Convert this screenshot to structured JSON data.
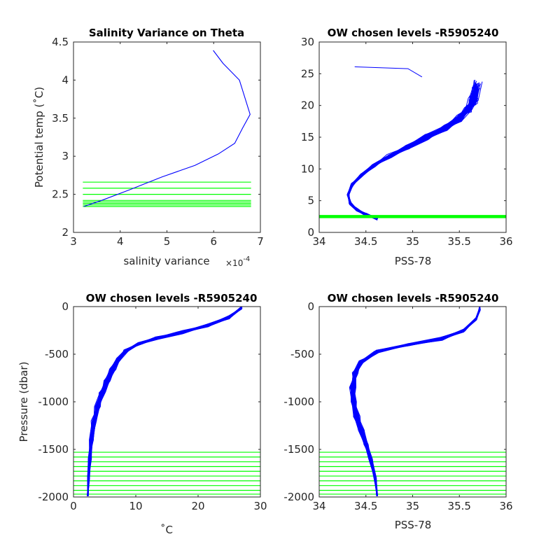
{
  "chart_data": [
    {
      "type": "line",
      "title": "Salinity Variance on Theta",
      "xlabel": "salinity variance",
      "x_exponent_label": "×10",
      "x_exponent_power": "-4",
      "ylabel": "Potential temp (˚C)",
      "xlim": [
        3,
        7
      ],
      "ylim": [
        2,
        4.5
      ],
      "xticks": [
        "3",
        "4",
        "5",
        "6",
        "7"
      ],
      "yticks": [
        "2",
        "2.5",
        "3",
        "3.5",
        "4",
        "4.5"
      ],
      "series": [
        {
          "color": "#0000ff",
          "x": [
            3.22,
            3.6,
            4.2,
            4.9,
            5.6,
            6.1,
            6.45,
            6.62,
            6.78,
            6.55,
            6.2,
            5.99
          ],
          "y": [
            2.34,
            2.42,
            2.56,
            2.73,
            2.88,
            3.03,
            3.17,
            3.37,
            3.55,
            4.0,
            4.22,
            4.39
          ]
        }
      ],
      "hlines": {
        "color": "#00ff00",
        "y": [
          2.34,
          2.36,
          2.38,
          2.4,
          2.42,
          2.5,
          2.58,
          2.66
        ],
        "x_start": 3.2,
        "x_end": 6.8
      }
    },
    {
      "type": "line",
      "title": "OW chosen levels -R5905240",
      "xlabel": "PSS-78",
      "ylabel": "",
      "xlim": [
        34,
        36
      ],
      "ylim": [
        0,
        30
      ],
      "xticks": [
        "34",
        "34.5",
        "35",
        "35.5",
        "36"
      ],
      "yticks": [
        "0",
        "5",
        "10",
        "15",
        "20",
        "25",
        "30"
      ],
      "profile": {
        "color": "#0000ff",
        "x": [
          34.62,
          34.5,
          34.4,
          34.33,
          34.31,
          34.35,
          34.45,
          34.58,
          34.75,
          34.95,
          35.15,
          35.35,
          35.5,
          35.6,
          35.65,
          35.68
        ],
        "y": [
          2.2,
          2.8,
          3.6,
          4.6,
          6.0,
          7.5,
          9.0,
          10.5,
          12.0,
          13.5,
          15.0,
          16.5,
          18.0,
          19.5,
          21.0,
          23.0
        ]
      },
      "hlines": {
        "color": "#00ff00",
        "y": [
          2.34,
          2.42,
          2.5,
          2.58,
          2.66
        ]
      }
    },
    {
      "type": "line",
      "title": "OW chosen levels -R5905240",
      "xlabel": "˚C",
      "ylabel": "Pressure (dbar)",
      "xlim": [
        0,
        30
      ],
      "ylim": [
        -2000,
        0
      ],
      "xticks": [
        "0",
        "10",
        "20",
        "30"
      ],
      "yticks": [
        "-2000",
        "-1500",
        "-1000",
        "-500",
        "0"
      ],
      "profile": {
        "color": "#0000ff",
        "x": [
          2.3,
          2.4,
          2.6,
          2.9,
          3.3,
          3.9,
          4.6,
          5.4,
          6.3,
          7.3,
          8.5,
          10.5,
          13.5,
          17.5,
          21.5,
          25.0,
          27.0
        ],
        "y": [
          -1990,
          -1800,
          -1600,
          -1400,
          -1200,
          -1050,
          -900,
          -780,
          -660,
          -550,
          -460,
          -390,
          -330,
          -270,
          -200,
          -110,
          -10
        ]
      },
      "hlines": {
        "color": "#00ff00",
        "y": [
          -1530,
          -1580,
          -1630,
          -1680,
          -1730,
          -1780,
          -1830,
          -1880,
          -1930,
          -1970
        ]
      }
    },
    {
      "type": "line",
      "title": "OW chosen levels -R5905240",
      "xlabel": "PSS-78",
      "ylabel": "",
      "xlim": [
        34,
        36
      ],
      "ylim": [
        -2000,
        0
      ],
      "xticks": [
        "34",
        "34.5",
        "35",
        "35.5",
        "36"
      ],
      "yticks": [
        "-2000",
        "-1500",
        "-1000",
        "-500",
        "0"
      ],
      "profile": {
        "color": "#0000ff",
        "x": [
          34.62,
          34.6,
          34.55,
          34.5,
          34.45,
          34.4,
          34.37,
          34.36,
          34.38,
          34.45,
          34.62,
          34.95,
          35.3,
          35.55,
          35.68,
          35.72
        ],
        "y": [
          -1990,
          -1800,
          -1600,
          -1450,
          -1300,
          -1150,
          -1000,
          -850,
          -700,
          -580,
          -470,
          -400,
          -340,
          -250,
          -130,
          -20
        ]
      },
      "hlines": {
        "color": "#00ff00",
        "y": [
          -1530,
          -1580,
          -1630,
          -1680,
          -1730,
          -1780,
          -1830,
          -1880,
          -1930,
          -1970
        ]
      }
    }
  ]
}
